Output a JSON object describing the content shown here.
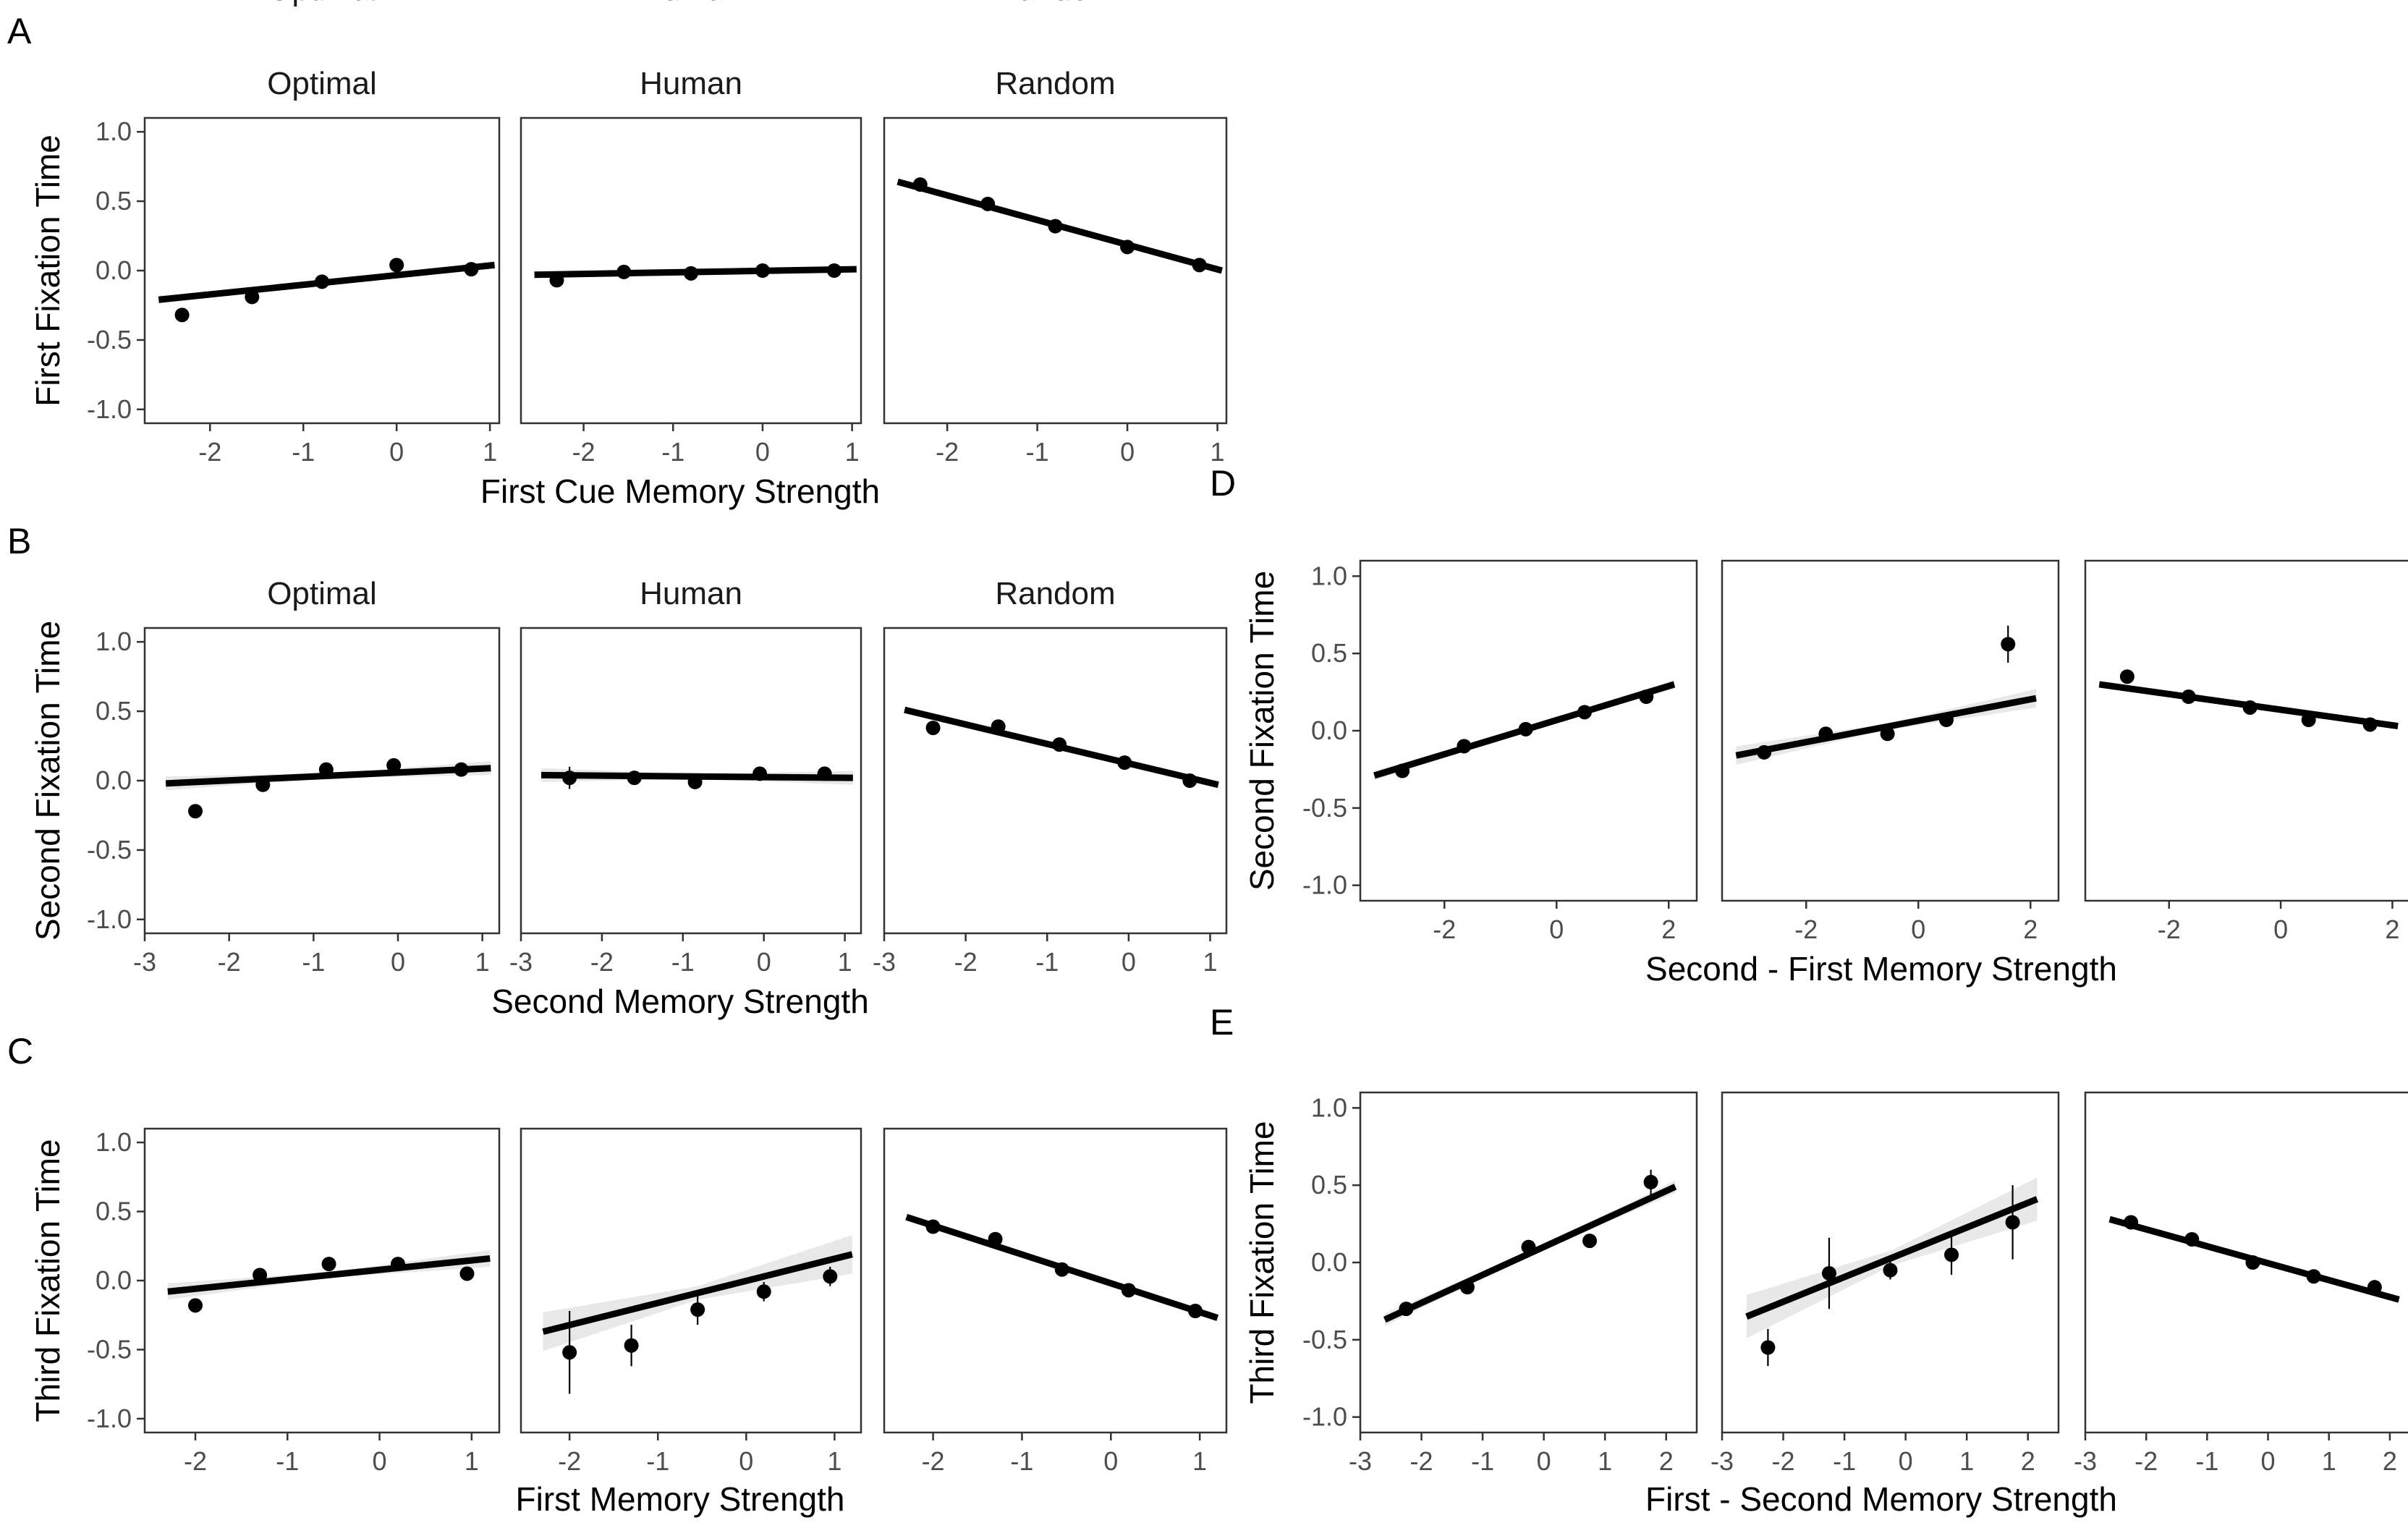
{
  "chart_data": [
    {
      "panel": "A",
      "type": "scatter",
      "facets": [
        "Optimal",
        "Human",
        "Random"
      ],
      "xlabel": "First Cue Memory Strength",
      "ylabel": "First Fixation Time",
      "xlim": [
        -2.7,
        1.1
      ],
      "ylim": [
        -1.1,
        1.1
      ],
      "xticks": [
        -2,
        -1,
        0,
        1
      ],
      "yticks": [
        1.0,
        0.5,
        0.0,
        -0.5,
        -1.0
      ],
      "ytick_labels": [
        "1.0",
        "0.5",
        "0.0",
        "-0.5",
        "-1.0"
      ],
      "series": [
        {
          "name": "Optimal",
          "points": [
            {
              "x": -2.3,
              "y": -0.32,
              "err": 0
            },
            {
              "x": -1.55,
              "y": -0.19,
              "err": 0
            },
            {
              "x": -0.8,
              "y": -0.08,
              "err": 0
            },
            {
              "x": 0.0,
              "y": 0.04,
              "err": 0
            },
            {
              "x": 0.8,
              "y": 0.01,
              "err": 0
            }
          ],
          "fit": {
            "x": [
              -2.55,
              1.05
            ],
            "y": [
              -0.21,
              0.04
            ],
            "band": 0.03
          }
        },
        {
          "name": "Human",
          "points": [
            {
              "x": -2.3,
              "y": -0.07,
              "err": 0.02
            },
            {
              "x": -1.55,
              "y": -0.01,
              "err": 0
            },
            {
              "x": -0.8,
              "y": -0.02,
              "err": 0
            },
            {
              "x": 0.0,
              "y": 0.0,
              "err": 0
            },
            {
              "x": 0.8,
              "y": 0.0,
              "err": 0
            }
          ],
          "fit": {
            "x": [
              -2.55,
              1.05
            ],
            "y": [
              -0.03,
              0.01
            ],
            "band": 0.02
          }
        },
        {
          "name": "Random",
          "points": [
            {
              "x": -2.3,
              "y": 0.62,
              "err": 0
            },
            {
              "x": -1.55,
              "y": 0.48,
              "err": 0
            },
            {
              "x": -0.8,
              "y": 0.32,
              "err": 0
            },
            {
              "x": 0.0,
              "y": 0.17,
              "err": 0
            },
            {
              "x": 0.8,
              "y": 0.04,
              "err": 0
            }
          ],
          "fit": {
            "x": [
              -2.55,
              1.05
            ],
            "y": [
              0.64,
              0.0
            ],
            "band": 0.02
          }
        }
      ]
    },
    {
      "panel": "B",
      "type": "scatter",
      "facets": [
        "Optimal",
        "Human",
        "Random"
      ],
      "xlabel": "Second Memory Strength",
      "ylabel": "Second Fixation Time",
      "xlim": [
        -3.0,
        1.2
      ],
      "ylim": [
        -1.1,
        1.1
      ],
      "xticks": [
        -3,
        -2,
        -1,
        0,
        1
      ],
      "yticks": [
        1.0,
        0.5,
        0.0,
        -0.5,
        -1.0
      ],
      "ytick_labels": [
        "1.0",
        "0.5",
        "0.0",
        "-0.5",
        "-1.0"
      ],
      "series": [
        {
          "name": "Optimal",
          "points": [
            {
              "x": -2.4,
              "y": -0.22,
              "err": 0
            },
            {
              "x": -1.6,
              "y": -0.03,
              "err": 0
            },
            {
              "x": -0.85,
              "y": 0.08,
              "err": 0
            },
            {
              "x": -0.05,
              "y": 0.11,
              "err": 0
            },
            {
              "x": 0.75,
              "y": 0.08,
              "err": 0
            }
          ],
          "fit": {
            "x": [
              -2.75,
              1.1
            ],
            "y": [
              -0.02,
              0.09
            ],
            "band": 0.05
          }
        },
        {
          "name": "Human",
          "points": [
            {
              "x": -2.4,
              "y": 0.02,
              "err": 0.08
            },
            {
              "x": -1.6,
              "y": 0.02,
              "err": 0.03
            },
            {
              "x": -0.85,
              "y": -0.01,
              "err": 0.03
            },
            {
              "x": -0.05,
              "y": 0.05,
              "err": 0.02
            },
            {
              "x": 0.75,
              "y": 0.05,
              "err": 0.02
            }
          ],
          "fit": {
            "x": [
              -2.75,
              1.1
            ],
            "y": [
              0.04,
              0.02
            ],
            "band": 0.05
          }
        },
        {
          "name": "Random",
          "points": [
            {
              "x": -2.4,
              "y": 0.38,
              "err": 0.02
            },
            {
              "x": -1.6,
              "y": 0.39,
              "err": 0
            },
            {
              "x": -0.85,
              "y": 0.26,
              "err": 0
            },
            {
              "x": -0.05,
              "y": 0.13,
              "err": 0
            },
            {
              "x": 0.75,
              "y": 0.0,
              "err": 0
            }
          ],
          "fit": {
            "x": [
              -2.75,
              1.1
            ],
            "y": [
              0.51,
              -0.03
            ],
            "band": 0.02
          }
        }
      ]
    },
    {
      "panel": "C",
      "type": "scatter",
      "facets": [
        "Optimal",
        "Human",
        "Random"
      ],
      "xlabel": "First Memory Strength",
      "ylabel": "Third Fixation Time",
      "xlim": [
        -2.55,
        1.3
      ],
      "ylim": [
        -1.1,
        1.1
      ],
      "xticks": [
        -2,
        -1,
        0,
        1
      ],
      "yticks": [
        1.0,
        0.5,
        0.0,
        -0.5,
        -1.0
      ],
      "ytick_labels": [
        "1.0",
        "0.5",
        "0.0",
        "-0.5",
        "-1.0"
      ],
      "series": [
        {
          "name": "Optimal",
          "points": [
            {
              "x": -2.0,
              "y": -0.18,
              "err": 0.05
            },
            {
              "x": -1.3,
              "y": 0.04,
              "err": 0.02
            },
            {
              "x": -0.55,
              "y": 0.12,
              "err": 0
            },
            {
              "x": 0.2,
              "y": 0.12,
              "err": 0
            },
            {
              "x": 0.95,
              "y": 0.05,
              "err": 0
            }
          ],
          "fit": {
            "x": [
              -2.3,
              1.2
            ],
            "y": [
              -0.08,
              0.16
            ],
            "band": 0.06
          }
        },
        {
          "name": "Human",
          "points": [
            {
              "x": -2.0,
              "y": -0.52,
              "err": 0.3
            },
            {
              "x": -1.3,
              "y": -0.47,
              "err": 0.15
            },
            {
              "x": -0.55,
              "y": -0.21,
              "err": 0.11
            },
            {
              "x": 0.2,
              "y": -0.08,
              "err": 0.07
            },
            {
              "x": 0.95,
              "y": 0.03,
              "err": 0.07
            }
          ],
          "fit": {
            "x": [
              -2.3,
              1.2
            ],
            "y": [
              -0.37,
              0.19
            ],
            "band": 0.14
          }
        },
        {
          "name": "Random",
          "points": [
            {
              "x": -2.0,
              "y": 0.39,
              "err": 0
            },
            {
              "x": -1.3,
              "y": 0.3,
              "err": 0
            },
            {
              "x": -0.55,
              "y": 0.08,
              "err": 0
            },
            {
              "x": 0.2,
              "y": -0.07,
              "err": 0
            },
            {
              "x": 0.95,
              "y": -0.22,
              "err": 0
            }
          ],
          "fit": {
            "x": [
              -2.3,
              1.2
            ],
            "y": [
              0.46,
              -0.27
            ],
            "band": 0.02
          }
        }
      ]
    },
    {
      "panel": "D",
      "type": "scatter",
      "facets": [
        "",
        "",
        ""
      ],
      "xlabel": "Second - First Memory Strength",
      "ylabel": "Second Fixation Time",
      "xlim": [
        -3.5,
        2.5
      ],
      "ylim": [
        -1.1,
        1.1
      ],
      "xticks": [
        -2,
        0,
        2
      ],
      "yticks": [
        1.0,
        0.5,
        0.0,
        -0.5,
        -1.0
      ],
      "ytick_labels": [
        "1.0",
        "0.5",
        "0.0",
        "-0.5",
        "-1.0"
      ],
      "series": [
        {
          "name": "",
          "points": [
            {
              "x": -2.75,
              "y": -0.26,
              "err": 0
            },
            {
              "x": -1.65,
              "y": -0.1,
              "err": 0
            },
            {
              "x": -0.55,
              "y": 0.01,
              "err": 0
            },
            {
              "x": 0.5,
              "y": 0.12,
              "err": 0
            },
            {
              "x": 1.6,
              "y": 0.22,
              "err": 0
            }
          ],
          "fit": {
            "x": [
              -3.25,
              2.1
            ],
            "y": [
              -0.29,
              0.3
            ],
            "band": 0.03
          }
        },
        {
          "name": "",
          "points": [
            {
              "x": -2.75,
              "y": -0.14,
              "err": 0
            },
            {
              "x": -1.65,
              "y": -0.02,
              "err": 0
            },
            {
              "x": -0.55,
              "y": -0.02,
              "err": 0.02
            },
            {
              "x": 0.5,
              "y": 0.07,
              "err": 0
            },
            {
              "x": 1.6,
              "y": 0.56,
              "err": 0.12
            }
          ],
          "fit": {
            "x": [
              -3.25,
              2.1
            ],
            "y": [
              -0.16,
              0.21
            ],
            "band": 0.06
          }
        },
        {
          "name": "",
          "points": [
            {
              "x": -2.75,
              "y": 0.35,
              "err": 0
            },
            {
              "x": -1.65,
              "y": 0.22,
              "err": 0
            },
            {
              "x": -0.55,
              "y": 0.15,
              "err": 0
            },
            {
              "x": 0.5,
              "y": 0.07,
              "err": 0
            },
            {
              "x": 1.6,
              "y": 0.04,
              "err": 0
            }
          ],
          "fit": {
            "x": [
              -3.25,
              2.1
            ],
            "y": [
              0.3,
              0.03
            ],
            "band": 0.02
          }
        }
      ]
    },
    {
      "panel": "E",
      "type": "scatter",
      "facets": [
        "",
        "",
        ""
      ],
      "xlabel": "First - Second Memory Strength",
      "ylabel": "Third Fixation Time",
      "xlim": [
        -3.0,
        2.5
      ],
      "ylim": [
        -1.1,
        1.1
      ],
      "xticks": [
        -3,
        -2,
        -1,
        0,
        1,
        2
      ],
      "yticks": [
        1.0,
        0.5,
        0.0,
        -0.5,
        -1.0
      ],
      "ytick_labels": [
        "1.0",
        "0.5",
        "0.0",
        "-0.5",
        "-1.0"
      ],
      "series": [
        {
          "name": "",
          "points": [
            {
              "x": -2.25,
              "y": -0.3,
              "err": 0
            },
            {
              "x": -1.25,
              "y": -0.16,
              "err": 0
            },
            {
              "x": -0.25,
              "y": 0.1,
              "err": 0
            },
            {
              "x": 0.75,
              "y": 0.14,
              "err": 0
            },
            {
              "x": 1.75,
              "y": 0.52,
              "err": 0.08
            }
          ],
          "fit": {
            "x": [
              -2.6,
              2.15
            ],
            "y": [
              -0.37,
              0.49
            ],
            "band": 0.04
          }
        },
        {
          "name": "",
          "points": [
            {
              "x": -2.25,
              "y": -0.55,
              "err": 0.12
            },
            {
              "x": -1.25,
              "y": -0.07,
              "err": 0.23
            },
            {
              "x": -0.25,
              "y": -0.05,
              "err": 0.06
            },
            {
              "x": 0.75,
              "y": 0.05,
              "err": 0.13
            },
            {
              "x": 1.75,
              "y": 0.26,
              "err": 0.24
            }
          ],
          "fit": {
            "x": [
              -2.6,
              2.15
            ],
            "y": [
              -0.35,
              0.41
            ],
            "band": 0.14
          }
        },
        {
          "name": "",
          "points": [
            {
              "x": -2.25,
              "y": 0.26,
              "err": 0
            },
            {
              "x": -1.25,
              "y": 0.15,
              "err": 0
            },
            {
              "x": -0.25,
              "y": 0.0,
              "err": 0
            },
            {
              "x": 0.75,
              "y": -0.09,
              "err": 0
            },
            {
              "x": 1.75,
              "y": -0.16,
              "err": 0
            }
          ],
          "fit": {
            "x": [
              -2.6,
              2.15
            ],
            "y": [
              0.28,
              -0.24
            ],
            "band": 0.02
          }
        }
      ]
    }
  ]
}
